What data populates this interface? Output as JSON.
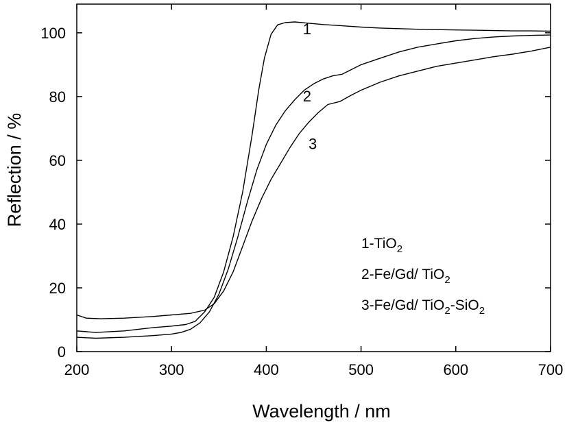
{
  "chart_data": {
    "type": "line",
    "xlabel": "Wavelength / nm",
    "ylabel": "Reflection / %",
    "xlim": [
      200,
      700
    ],
    "ylim": [
      0,
      109
    ],
    "xticks": [
      200,
      300,
      400,
      500,
      600,
      700
    ],
    "yticks": [
      0,
      20,
      40,
      60,
      80,
      100
    ],
    "grid": false,
    "series": [
      {
        "name": "1",
        "x": [
          200,
          220,
          250,
          280,
          300,
          315,
          325,
          335,
          345,
          355,
          365,
          375,
          385,
          392,
          398,
          405,
          412,
          420,
          430,
          445,
          460,
          480,
          500,
          520,
          540,
          560,
          580,
          600,
          620,
          640,
          660,
          680,
          700
        ],
        "y": [
          6.5,
          6.0,
          6.5,
          7.5,
          8.0,
          8.5,
          9.5,
          12.5,
          17.0,
          25.0,
          36.0,
          50.0,
          68.0,
          82.0,
          92.0,
          99.5,
          102.5,
          103.2,
          103.4,
          103.0,
          102.6,
          102.2,
          101.8,
          101.5,
          101.3,
          101.1,
          101.0,
          100.9,
          100.8,
          100.7,
          100.6,
          100.6,
          100.5
        ]
      },
      {
        "name": "2",
        "x": [
          200,
          220,
          250,
          280,
          300,
          310,
          320,
          330,
          340,
          350,
          360,
          370,
          380,
          390,
          400,
          410,
          420,
          430,
          440,
          450,
          460,
          470,
          480,
          490,
          500,
          520,
          540,
          560,
          580,
          600,
          620,
          640,
          660,
          680,
          700
        ],
        "y": [
          4.5,
          4.2,
          4.5,
          5.0,
          5.5,
          6.0,
          7.0,
          9.0,
          12.5,
          18.0,
          26.0,
          36.0,
          47.0,
          57.0,
          65.0,
          71.0,
          75.5,
          79.0,
          82.0,
          84.0,
          85.5,
          86.5,
          87.0,
          88.5,
          90.0,
          92.0,
          94.0,
          95.5,
          96.5,
          97.5,
          98.2,
          98.7,
          99.0,
          99.2,
          99.3
        ]
      },
      {
        "name": "3",
        "x": [
          200,
          210,
          225,
          250,
          280,
          300,
          320,
          335,
          345,
          355,
          365,
          375,
          385,
          395,
          405,
          415,
          425,
          435,
          445,
          455,
          465,
          478,
          490,
          500,
          520,
          540,
          560,
          580,
          600,
          620,
          640,
          660,
          680,
          700
        ],
        "y": [
          11.5,
          10.5,
          10.3,
          10.5,
          11.0,
          11.5,
          12.0,
          13.0,
          15.0,
          19.0,
          25.0,
          33.0,
          41.0,
          48.0,
          54.0,
          59.0,
          64.0,
          68.5,
          72.0,
          75.0,
          77.5,
          78.5,
          80.5,
          82.0,
          84.5,
          86.5,
          88.0,
          89.5,
          90.5,
          91.5,
          92.5,
          93.3,
          94.3,
          95.5
        ]
      }
    ],
    "curve_labels": [
      {
        "text": "1",
        "x": 443,
        "y": 99.5
      },
      {
        "text": "2",
        "x": 443,
        "y": 78.5
      },
      {
        "text": "3",
        "x": 449,
        "y": 63.5
      }
    ],
    "legend": {
      "placement": "lower-right",
      "entries": [
        {
          "prefix": "1-TiO",
          "sub1": "2",
          "mid": "",
          "sub2": ""
        },
        {
          "prefix": "2-Fe/Gd/ TiO",
          "sub1": "2",
          "mid": "",
          "sub2": ""
        },
        {
          "prefix": "3-Fe/Gd/ TiO",
          "sub1": "2",
          "mid": "-SiO",
          "sub2": "2"
        }
      ]
    }
  }
}
